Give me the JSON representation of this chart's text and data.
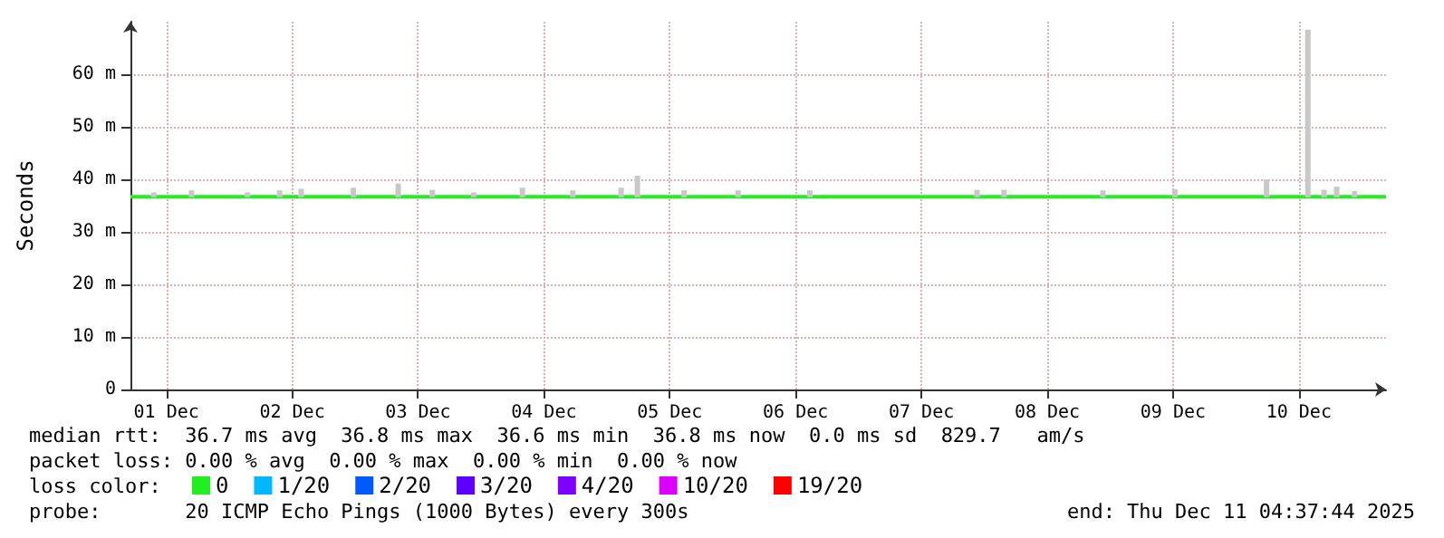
{
  "chart_data": {
    "type": "line",
    "ylabel": "Seconds",
    "legend_title": "loss color:",
    "legend": "bottom",
    "grid": true,
    "marker": "none",
    "line_style": "solid",
    "xlim": [
      "2025-12-01T05:09",
      "2025-12-11T04:37"
    ],
    "xticks": [
      {
        "value": "2025-12-01T12:00",
        "label": "01 Dec"
      },
      {
        "value": "2025-12-02T12:00",
        "label": "02 Dec"
      },
      {
        "value": "2025-12-03T12:00",
        "label": "03 Dec"
      },
      {
        "value": "2025-12-04T12:00",
        "label": "04 Dec"
      },
      {
        "value": "2025-12-05T12:00",
        "label": "05 Dec"
      },
      {
        "value": "2025-12-06T12:00",
        "label": "06 Dec"
      },
      {
        "value": "2025-12-07T12:00",
        "label": "07 Dec"
      },
      {
        "value": "2025-12-08T12:00",
        "label": "08 Dec"
      },
      {
        "value": "2025-12-09T12:00",
        "label": "09 Dec"
      },
      {
        "value": "2025-12-10T12:00",
        "label": "10 Dec"
      }
    ],
    "ylim": [
      0,
      70
    ],
    "yticks": [
      0,
      {
        "value": 10,
        "label": "10 m"
      },
      {
        "value": 20,
        "label": "20 m"
      },
      {
        "value": 30,
        "label": "30 m"
      },
      {
        "value": 40,
        "label": "40 m"
      },
      {
        "value": 50,
        "label": "50 m"
      },
      {
        "value": 60,
        "label": "60 m"
      }
    ],
    "series": [
      {
        "type": "bar",
        "color": "#c8c8c8",
        "x": [
          "2025-12-01T09:36",
          "2025-12-01T16:48",
          "2025-12-02T03:26",
          "2025-12-02T09:36",
          "2025-12-02T13:43",
          "2025-12-02T23:40",
          "2025-12-03T08:13",
          "2025-12-03T14:44",
          "2025-12-03T22:37",
          "2025-12-04T07:54",
          "2025-12-04T17:30",
          "2025-12-05T02:44",
          "2025-12-05T05:50",
          "2025-12-05T14:44",
          "2025-12-06T01:02",
          "2025-12-06T14:44",
          "2025-12-07T22:37",
          "2025-12-08T03:46",
          "2025-12-08T22:37",
          "2025-12-09T12:20",
          "2025-12-10T05:50",
          "2025-12-10T13:43",
          "2025-12-10T16:48",
          "2025-12-10T19:12",
          "2025-12-10T22:37"
        ],
        "base": [
          36.6,
          36.6,
          36.6,
          36.6,
          36.6,
          36.6,
          36.6,
          36.6,
          36.6,
          36.6,
          36.6,
          36.6,
          36.6,
          36.6,
          36.6,
          36.6,
          36.6,
          36.6,
          36.6,
          36.6,
          36.6,
          36.6,
          36.6,
          36.6,
          36.6
        ],
        "values": [
          0.9,
          1.3,
          0.9,
          1.3,
          1.6,
          1.8,
          2.6,
          1.4,
          0.9,
          1.8,
          1.3,
          1.8,
          4.1,
          1.3,
          1.3,
          1.3,
          1.4,
          1.4,
          1.3,
          1.5,
          3.4,
          31.9,
          1.4,
          2,
          1.2
        ]
      },
      {
        "name": "0",
        "color": "#22ee22",
        "x": [
          "2025-12-01T05:09",
          "2025-12-02T12:00",
          "2025-12-04T12:00",
          "2025-12-06T12:00",
          "2025-12-08T12:00",
          "2025-12-10T12:00",
          "2025-12-11T04:37"
        ],
        "values": [
          36.7,
          36.7,
          36.7,
          36.7,
          36.7,
          36.7,
          36.7
        ]
      },
      {
        "name": "1/20",
        "color": "#00b8ff"
      },
      {
        "name": "2/20",
        "color": "#0059ff"
      },
      {
        "name": "3/20",
        "color": "#5e00ff"
      },
      {
        "name": "4/20",
        "color": "#7e00ff"
      },
      {
        "name": "10/20",
        "color": "#dd00ff"
      },
      {
        "name": "19/20",
        "color": "#ff0000"
      }
    ],
    "annotations": [
      "median rtt:  36.7 ms avg  36.8 ms max  36.6 ms min  36.8 ms now  0.0 ms sd  829.7   am/s",
      "packet loss: 0.00 % avg  0.00 % max  0.00 % min  0.00 % now",
      "probe:       20 ICMP Echo Pings (1000 Bytes) every 300s",
      "end: Thu Dec 11 04:37:44 2025"
    ]
  }
}
